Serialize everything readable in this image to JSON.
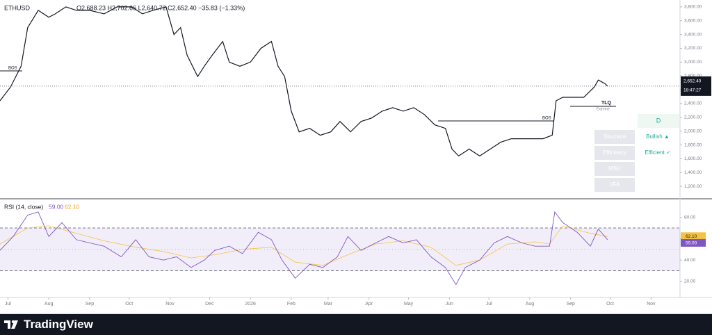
{
  "chart_data": [
    {
      "type": "line",
      "symbol": "ETHUSD",
      "ohlc": "O2,688.23  H2,702.66  L2,640.72  C2,652.40  −35.83 (−1.33%)",
      "x": [
        -6,
        2,
        10,
        15,
        23,
        31,
        36,
        44,
        52,
        62,
        73,
        83,
        94,
        102,
        110,
        120,
        126,
        131,
        136,
        144,
        149,
        155,
        163,
        168,
        176,
        184,
        192,
        200,
        205,
        210,
        215,
        221,
        229,
        237,
        245,
        252,
        260,
        268,
        276,
        284,
        292,
        300,
        308,
        316,
        324,
        332,
        337,
        342,
        350,
        358,
        366,
        374,
        382,
        390,
        398,
        406,
        413,
        416,
        421,
        429,
        437,
        445,
        448,
        453,
        455
      ],
      "series": [
        {
          "color": "#131722",
          "values": [
            2440,
            2640,
            2940,
            3500,
            3750,
            3650,
            3700,
            3800,
            3750,
            3750,
            3700,
            3800,
            3800,
            3700,
            3750,
            3800,
            3400,
            3500,
            3100,
            2790,
            2940,
            3100,
            3300,
            3000,
            2940,
            3000,
            3200,
            3300,
            2940,
            2790,
            2290,
            1990,
            2040,
            1940,
            1990,
            2140,
            1990,
            2140,
            2190,
            2290,
            2340,
            2290,
            2340,
            2240,
            2090,
            2040,
            1740,
            1640,
            1740,
            1640,
            1740,
            1840,
            1890,
            1890,
            1890,
            1890,
            1940,
            2440,
            2490,
            2490,
            2490,
            2640,
            2740,
            2690,
            2652.4
          ]
        }
      ],
      "xlim": [
        -6,
        510
      ],
      "ylim": [
        1030,
        3900
      ],
      "yticks": [
        {
          "value": 1200,
          "label": "1,200.00"
        },
        {
          "value": 1400,
          "label": "1,400.00"
        },
        {
          "value": 1600,
          "label": "1,600.00"
        },
        {
          "value": 1800,
          "label": "1,800.00"
        },
        {
          "value": 2000,
          "label": "2,000.00"
        },
        {
          "value": 2200,
          "label": "2,200.00"
        },
        {
          "value": 2400,
          "label": "2,400.00"
        },
        {
          "value": 2600,
          "label": "2,600.00"
        },
        {
          "value": 2800,
          "label": "2,800.00"
        },
        {
          "value": 3000,
          "label": "3,000.00"
        },
        {
          "value": 3200,
          "label": "3,200.00"
        },
        {
          "value": 3400,
          "label": "3,400.00"
        },
        {
          "value": 3600,
          "label": "3,600.00"
        },
        {
          "value": 3800,
          "label": "3,800.00"
        }
      ],
      "last_value": 2652.4,
      "last_value_label": "2,652.40",
      "countdown": "18:47:27",
      "annotations": [
        "BOS",
        "BOS",
        "TLQ",
        "Extreme"
      ],
      "panel": {
        "header": "D",
        "rows": [
          {
            "label": "Structure",
            "state": "Bullish ▲"
          },
          {
            "label": "Efficiency",
            "state": "Efficient ✓"
          },
          {
            "label": "MSU"
          },
          {
            "label": "VFA"
          }
        ]
      }
    },
    {
      "type": "line",
      "title": "RSI (14, close)",
      "rsi_label": "59.00",
      "ma_label": "62.10",
      "x": [
        -6,
        4,
        15,
        23,
        31,
        41,
        52,
        62,
        73,
        86,
        97,
        107,
        118,
        128,
        139,
        149,
        157,
        168,
        178,
        190,
        200,
        208,
        218,
        229,
        239,
        250,
        258,
        268,
        279,
        289,
        300,
        310,
        321,
        332,
        340,
        347,
        358,
        369,
        379,
        390,
        400,
        411,
        415,
        421,
        432,
        442,
        448,
        455
      ],
      "series": [
        {
          "color": "#7e57c2",
          "values": [
            49,
            62,
            82,
            85,
            62,
            75,
            59,
            56,
            53,
            43,
            59,
            43,
            40,
            43,
            33,
            40,
            49,
            53,
            46,
            66,
            59,
            40,
            23,
            36,
            33,
            43,
            62,
            49,
            56,
            62,
            56,
            59,
            43,
            33,
            17,
            33,
            40,
            56,
            62,
            56,
            53,
            53,
            85,
            75,
            66,
            53,
            69,
            59
          ]
        }
      ],
      "ma": {
        "color": "#f5c242",
        "x": [
          -6,
          15,
          31,
          52,
          73,
          97,
          118,
          139,
          157,
          178,
          200,
          218,
          239,
          258,
          279,
          300,
          321,
          340,
          358,
          379,
          400,
          411,
          421,
          442,
          455
        ],
        "values": [
          55,
          70,
          72,
          65,
          58,
          52,
          48,
          42,
          45,
          50,
          52,
          38,
          35,
          45,
          55,
          58,
          52,
          35,
          40,
          55,
          57,
          55,
          72,
          65,
          62
        ]
      },
      "band": [
        30,
        70
      ],
      "midline": 50,
      "xlim": [
        -6,
        510
      ],
      "ylim": [
        5,
        96
      ],
      "yticks": [
        {
          "value": 20,
          "label": "20.00"
        },
        {
          "value": 40,
          "label": "40.00"
        },
        {
          "value": 60,
          "label": "60.00"
        },
        {
          "value": 80,
          "label": "80.00"
        }
      ],
      "xticks": [
        {
          "value": 0,
          "label": "Jul"
        },
        {
          "value": 31,
          "label": "Aug"
        },
        {
          "value": 62,
          "label": "Sep"
        },
        {
          "value": 92,
          "label": "Oct"
        },
        {
          "value": 123,
          "label": "Nov"
        },
        {
          "value": 153,
          "label": "Dec"
        },
        {
          "value": 184,
          "label": "2026"
        },
        {
          "value": 215,
          "label": "Feb"
        },
        {
          "value": 243,
          "label": "Mar"
        },
        {
          "value": 274,
          "label": "Apr"
        },
        {
          "value": 304,
          "label": "May"
        },
        {
          "value": 335,
          "label": "Jun"
        },
        {
          "value": 365,
          "label": "Jul"
        },
        {
          "value": 396,
          "label": "Aug"
        },
        {
          "value": 427,
          "label": "Sep"
        },
        {
          "value": 457,
          "label": "Oct"
        },
        {
          "value": 488,
          "label": "Nov"
        }
      ]
    }
  ],
  "footer": {
    "brand": "TradingView"
  }
}
